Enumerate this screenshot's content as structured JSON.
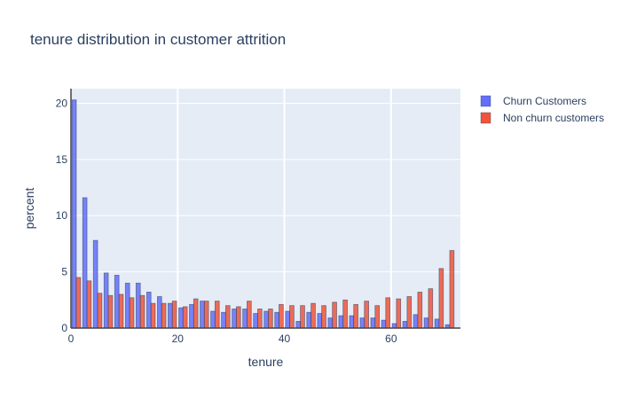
{
  "chart_data": {
    "type": "bar",
    "title": "tenure distribution in customer attrition",
    "xlabel": "tenure",
    "ylabel": "percent",
    "xlim": [
      0,
      73
    ],
    "ylim": [
      0,
      21.3
    ],
    "xticks": [
      0,
      20,
      40,
      60
    ],
    "yticks": [
      0,
      5,
      10,
      15,
      20
    ],
    "grid": true,
    "legend_position": "top-right",
    "bin_width": 2,
    "bin_starts": [
      0,
      2,
      4,
      6,
      8,
      10,
      12,
      14,
      16,
      18,
      20,
      22,
      24,
      26,
      28,
      30,
      32,
      34,
      36,
      38,
      40,
      42,
      44,
      46,
      48,
      50,
      52,
      54,
      56,
      58,
      60,
      62,
      64,
      66,
      68,
      70,
      72
    ],
    "series": [
      {
        "name": "Churn Customers",
        "color": "#636efa",
        "values": [
          20.3,
          11.6,
          7.8,
          4.9,
          4.7,
          4.0,
          4.0,
          3.2,
          2.8,
          2.2,
          1.8,
          2.1,
          2.4,
          1.5,
          1.4,
          1.7,
          1.7,
          1.3,
          1.5,
          1.4,
          1.5,
          0.6,
          1.4,
          1.3,
          0.9,
          1.1,
          1.1,
          0.9,
          0.9,
          0.7,
          0.4,
          0.6,
          1.2,
          0.9,
          0.8,
          0.3,
          0
        ]
      },
      {
        "name": "Non churn customers",
        "color": "#ef553b",
        "values": [
          4.5,
          4.2,
          3.1,
          2.9,
          3.0,
          2.7,
          2.9,
          2.2,
          2.2,
          2.4,
          1.9,
          2.6,
          2.4,
          2.4,
          2.0,
          1.9,
          2.4,
          1.7,
          1.7,
          2.1,
          2.0,
          2.0,
          2.2,
          2.0,
          2.3,
          2.5,
          2.1,
          2.4,
          2.0,
          2.7,
          2.6,
          2.8,
          3.2,
          3.5,
          5.3,
          6.9,
          0
        ]
      }
    ]
  }
}
